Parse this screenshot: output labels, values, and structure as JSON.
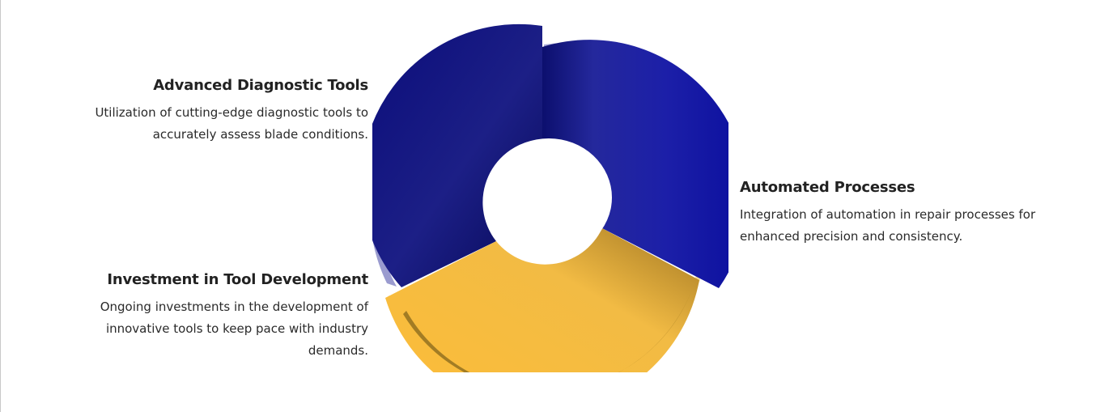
{
  "diagram": {
    "segments": [
      {
        "title": "Advanced Diagnostic Tools",
        "description": "Utilization of cutting-edge diagnostic tools to accurately assess blade conditions.",
        "color": "#0b0d78"
      },
      {
        "title": "Automated Processes",
        "description": "Integration of automation in repair processes for enhanced precision and consistency.",
        "color": "#1a1aa8"
      },
      {
        "title": "Investment in Tool Development",
        "description": "Ongoing investments in the development of innovative tools to keep pace with industry demands.",
        "color": "#fbbd3a"
      }
    ]
  }
}
